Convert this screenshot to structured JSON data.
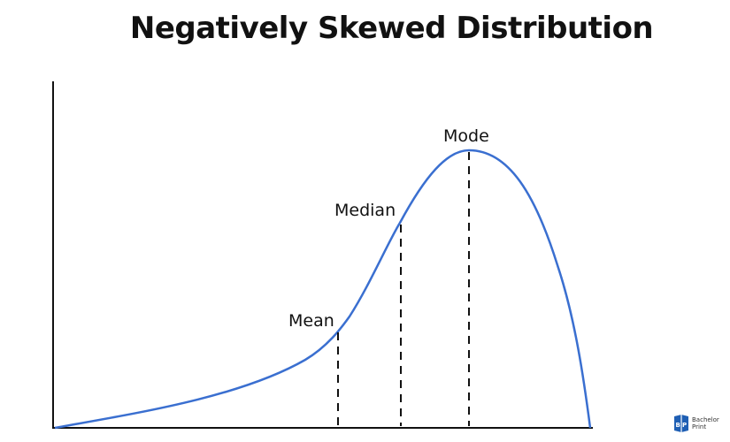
{
  "title": "Negatively Skewed Distribution",
  "labels": {
    "mean": "Mean",
    "median": "Median",
    "mode": "Mode"
  },
  "colors": {
    "curve": "#3a6fd0",
    "axis": "#111111",
    "text": "#111111",
    "logo": "#1f5fb4"
  },
  "logo": {
    "line1": "Bachelor",
    "line2": "Print"
  }
}
